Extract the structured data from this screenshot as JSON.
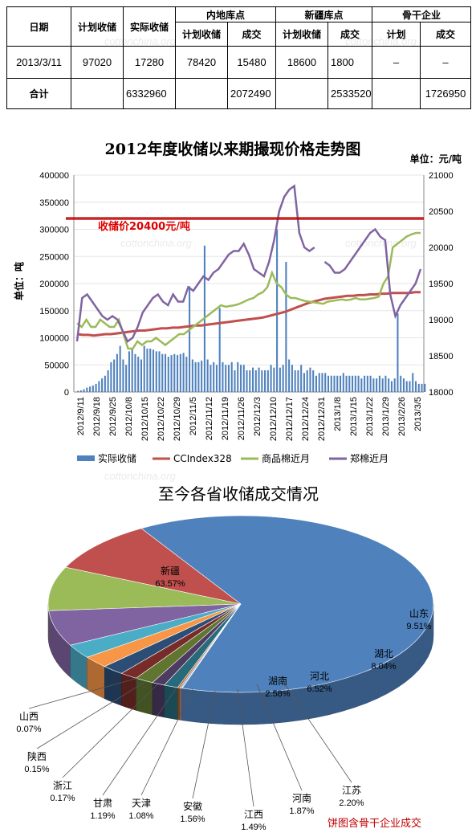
{
  "table": {
    "headers": {
      "date": "日期",
      "plan": "计划收储",
      "actual": "实际收储",
      "inland": "内地库点",
      "xinjiang": "新疆库点",
      "backbone": "骨干企业",
      "sub_plan": "计划收储",
      "sub_deal": "成交",
      "sub_plan2": "计划收储",
      "sub_deal2": "成交",
      "sub_plan3": "计划",
      "sub_deal3": "成交"
    },
    "rows": [
      {
        "date": "2013/3/11",
        "plan": "97020",
        "actual": "17280",
        "inland_plan": "78420",
        "inland_deal": "15480",
        "xj_plan": "18600",
        "xj_deal": "1800",
        "bb_plan": "–",
        "bb_deal": "–"
      },
      {
        "date": "合计",
        "plan": "",
        "actual": "6332960",
        "inland_plan": "",
        "inland_deal": "2072490",
        "xj_plan": "",
        "xj_deal": "2533520",
        "bb_plan": "",
        "bb_deal": "1726950"
      }
    ]
  },
  "watermark": "cottonchina.org",
  "chart_data": [
    {
      "type": "bar+line",
      "title": "2012年度收储以来期撮现价格走势图",
      "unit_right": "单位：元/吨",
      "ylabel_left": "单位：吨",
      "annotation": "收储价20400元/吨",
      "reference_line": 20400,
      "ylim_left": [
        0,
        400000
      ],
      "ylim_right": [
        18000,
        21000
      ],
      "yticks_left": [
        "0",
        "50000",
        "100000",
        "150000",
        "200000",
        "250000",
        "300000",
        "350000",
        "400000"
      ],
      "yticks_right": [
        "18000",
        "18500",
        "19000",
        "19500",
        "20000",
        "20500",
        "21000"
      ],
      "xticks": [
        "2012/9/11",
        "2012/9/18",
        "2012/9/25",
        "2012/10/8",
        "2012/10/15",
        "2012/10/22",
        "2012/10/29",
        "2012/11/5",
        "2012/11/12",
        "2012/11/19",
        "2012/11/26",
        "2012/12/3",
        "2012/12/10",
        "2012/12/17",
        "2012/12/24",
        "2012/12/31",
        "2013/1/8",
        "2013/1/15",
        "2013/1/22",
        "2013/1/29",
        "2013/2/26",
        "2013/3/5"
      ],
      "legend": [
        {
          "name": "实际收储",
          "color": "#4f81bd"
        },
        {
          "name": "CCIndex328",
          "color": "#c0504d"
        },
        {
          "name": "商品棉近月",
          "color": "#9bbb59"
        },
        {
          "name": "郑棉近月",
          "color": "#8064a2"
        }
      ],
      "series_bar_actual": [
        2000,
        3000,
        5000,
        8000,
        10000,
        12000,
        15000,
        20000,
        25000,
        30000,
        40000,
        55000,
        60000,
        70000,
        85000,
        60000,
        50000,
        75000,
        80000,
        70000,
        65000,
        60000,
        85000,
        80000,
        80000,
        78000,
        75000,
        75000,
        70000,
        70000,
        65000,
        68000,
        70000,
        68000,
        70000,
        72000,
        65000,
        195000,
        60000,
        55000,
        55000,
        58000,
        270000,
        60000,
        50000,
        55000,
        50000,
        155000,
        55000,
        50000,
        50000,
        55000,
        40000,
        55000,
        50000,
        50000,
        40000,
        40000,
        45000,
        40000,
        45000,
        40000,
        40000,
        40000,
        50000,
        45000,
        300000,
        45000,
        50000,
        240000,
        60000,
        50000,
        40000,
        40000,
        50000,
        35000,
        40000,
        45000,
        40000,
        30000,
        35000,
        35000,
        35000,
        30000,
        30000,
        30000,
        30000,
        30000,
        35000,
        30000,
        30000,
        30000,
        30000,
        30000,
        25000,
        30000,
        30000,
        30000,
        25000,
        25000,
        30000,
        25000,
        30000,
        25000,
        20000,
        25000,
        145000,
        30000,
        25000,
        20000,
        20000,
        35000,
        20000,
        15000,
        15000,
        15000
      ],
      "series_cc": [
        18800,
        18790,
        18790,
        18780,
        18790,
        18800,
        18800,
        18810,
        18820,
        18830,
        18840,
        18850,
        18850,
        18860,
        18870,
        18880,
        18880,
        18890,
        18890,
        18900,
        18910,
        18920,
        18920,
        18930,
        18940,
        18950,
        18960,
        18970,
        18980,
        18990,
        19000,
        19010,
        19020,
        19030,
        19050,
        19070,
        19090,
        19110,
        19140,
        19170,
        19200,
        19230,
        19250,
        19270,
        19290,
        19300,
        19310,
        19320,
        19330,
        19330,
        19340,
        19340,
        19350,
        19350,
        19360,
        19360,
        19370,
        19370,
        19370,
        19370,
        19380,
        19380
      ],
      "series_commodity": [
        18950,
        18900,
        19000,
        18900,
        18900,
        19000,
        18950,
        18900,
        18900,
        19000,
        18800,
        18600,
        18600,
        18700,
        18650,
        18700,
        18700,
        18750,
        18700,
        18650,
        18700,
        18750,
        18800,
        18800,
        18850,
        18900,
        18950,
        19000,
        19050,
        19100,
        19150,
        19200,
        19180,
        19190,
        19200,
        19220,
        19250,
        19280,
        19300,
        19350,
        19380,
        19450,
        19650,
        19500,
        19450,
        19350,
        19300,
        19300,
        19280,
        19260,
        19250,
        19240,
        19230,
        19220,
        19250,
        19260,
        19270,
        19280,
        19270,
        19280,
        19300,
        19280,
        19280,
        19290,
        19300,
        19320,
        19500,
        19600,
        20000,
        20050,
        20100,
        20150,
        20180,
        20200,
        20200
      ],
      "series_zhengzhou": [
        18700,
        19300,
        19350,
        19250,
        19150,
        19050,
        19000,
        19050,
        19000,
        18850,
        18700,
        18750,
        18900,
        19100,
        19200,
        19300,
        19350,
        19250,
        19200,
        19350,
        19250,
        19250,
        19450,
        19400,
        19500,
        19600,
        19550,
        19650,
        19700,
        19800,
        19900,
        19950,
        19950,
        20050,
        19900,
        19700,
        19650,
        19600,
        19800,
        20100,
        20500,
        20700,
        20800,
        20850,
        20200,
        20000,
        19950,
        20000,
        null,
        19800,
        19750,
        19650,
        19650,
        19700,
        19800,
        19900,
        20000,
        20100,
        20200,
        20250,
        20150,
        20100,
        19350,
        19050,
        19200,
        19300,
        19400,
        19500,
        19700
      ]
    },
    {
      "type": "pie",
      "title": "至今各省收储成交情况",
      "footnote": "饼图含骨干企业成交",
      "slices": [
        {
          "label": "新疆",
          "pct": "63.57%",
          "value": 63.57,
          "color": "#4f81bd"
        },
        {
          "label": "山东",
          "pct": "9.51%",
          "value": 9.51,
          "color": "#c0504d"
        },
        {
          "label": "湖北",
          "pct": "8.04%",
          "value": 8.04,
          "color": "#9bbb59"
        },
        {
          "label": "河北",
          "pct": "6.52%",
          "value": 6.52,
          "color": "#8064a2"
        },
        {
          "label": "湖南",
          "pct": "2.58%",
          "value": 2.58,
          "color": "#4bacc6"
        },
        {
          "label": "江苏",
          "pct": "2.20%",
          "value": 2.2,
          "color": "#f79646"
        },
        {
          "label": "河南",
          "pct": "1.87%",
          "value": 1.87,
          "color": "#2c4d75"
        },
        {
          "label": "江西",
          "pct": "1.49%",
          "value": 1.49,
          "color": "#772c2a"
        },
        {
          "label": "安徽",
          "pct": "1.56%",
          "value": 1.56,
          "color": "#5f7530"
        },
        {
          "label": "天津",
          "pct": "1.08%",
          "value": 1.08,
          "color": "#4d3b62"
        },
        {
          "label": "甘肃",
          "pct": "1.19%",
          "value": 1.19,
          "color": "#276a7c"
        },
        {
          "label": "浙江",
          "pct": "0.17%",
          "value": 0.17,
          "color": "#b65708"
        },
        {
          "label": "陕西",
          "pct": "0.15%",
          "value": 0.15,
          "color": "#729aca"
        },
        {
          "label": "山西",
          "pct": "0.07%",
          "value": 0.07,
          "color": "#cd7371"
        }
      ]
    }
  ]
}
